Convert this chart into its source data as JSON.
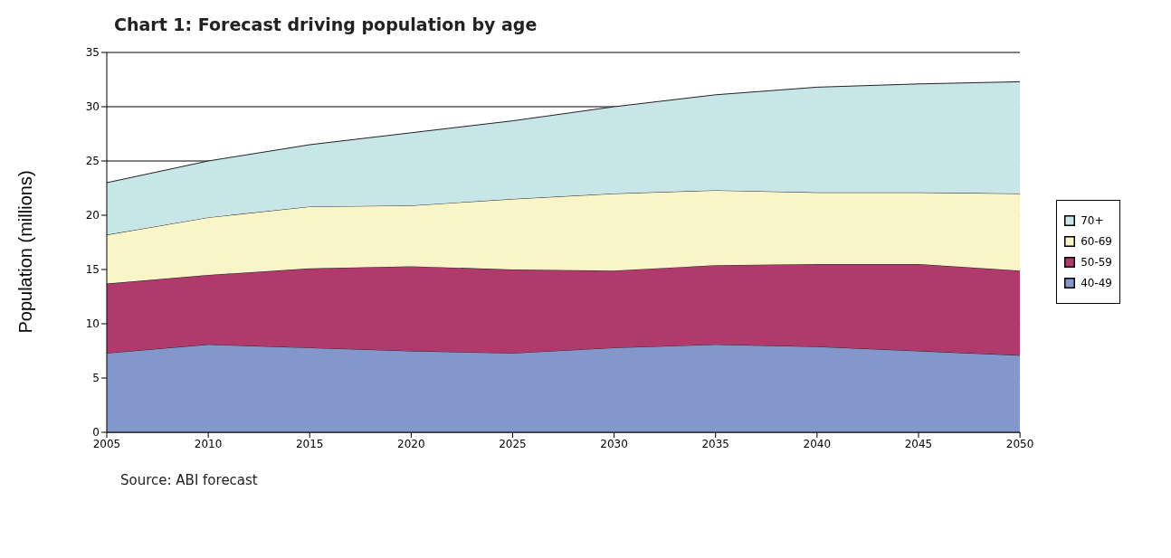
{
  "chart_data": {
    "type": "area",
    "title": "Chart 1: Forecast driving population by age",
    "ylabel": "Population (millions)",
    "annotations": [
      "Source: ABI forecast"
    ],
    "x": [
      2005,
      2010,
      2015,
      2020,
      2025,
      2030,
      2035,
      2040,
      2045,
      2050
    ],
    "stacked": true,
    "series": [
      {
        "name": "40-49",
        "color": "#8497cc",
        "values": [
          7.3,
          8.1,
          7.8,
          7.5,
          7.3,
          7.8,
          8.1,
          7.9,
          7.5,
          7.1
        ]
      },
      {
        "name": "50-59",
        "color": "#b03a6c",
        "values": [
          6.4,
          6.4,
          7.3,
          7.8,
          7.7,
          7.1,
          7.3,
          7.6,
          8.0,
          7.8
        ]
      },
      {
        "name": "60-69",
        "color": "#faf5c8",
        "values": [
          4.5,
          5.3,
          5.7,
          5.6,
          6.5,
          7.1,
          6.9,
          6.6,
          6.6,
          7.1
        ]
      },
      {
        "name": "70+",
        "color": "#c8e6e8",
        "values": [
          4.8,
          5.2,
          5.7,
          6.7,
          7.2,
          8.0,
          8.8,
          9.7,
          10.0,
          10.3
        ]
      }
    ],
    "xlim": [
      2005,
      2050
    ],
    "xticks": [
      2005,
      2010,
      2015,
      2020,
      2025,
      2030,
      2035,
      2040,
      2045,
      2050
    ],
    "ylim": [
      0,
      35
    ],
    "yticks": [
      0,
      5,
      10,
      15,
      20,
      25,
      30,
      35
    ],
    "grid": "y",
    "legend": "right"
  }
}
